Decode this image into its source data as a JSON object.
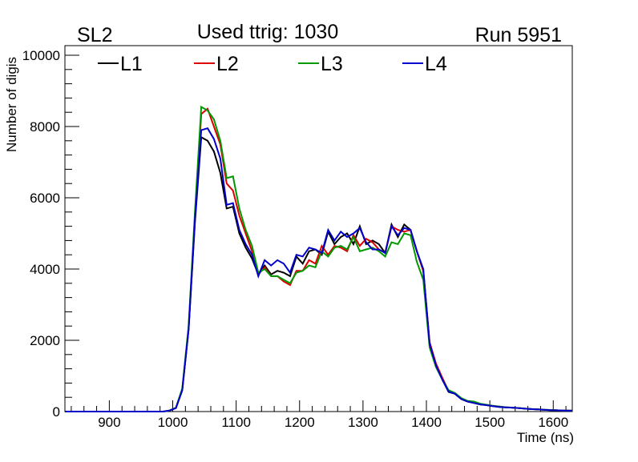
{
  "chart_data": {
    "type": "line",
    "title_left": "SL2",
    "title_center": "Used ttrig: 1030",
    "title_right": "Run 5951",
    "xlabel": "Time (ns)",
    "ylabel": "Number of digis",
    "xlim": [
      830,
      1630
    ],
    "ylim": [
      0,
      10270
    ],
    "x_ticks": [
      900,
      1000,
      1100,
      1200,
      1300,
      1400,
      1500,
      1600
    ],
    "y_ticks": [
      0,
      2000,
      4000,
      6000,
      8000,
      10000
    ],
    "x_start": 835,
    "x_step": 10,
    "legend_position": "top",
    "series": [
      {
        "name": "L1",
        "color": "#000000",
        "values": [
          0,
          0,
          0,
          0,
          0,
          0,
          0,
          0,
          0,
          0,
          0,
          0,
          0,
          0,
          0,
          0,
          30,
          100,
          600,
          2300,
          5300,
          7700,
          7600,
          7300,
          6700,
          5700,
          5750,
          5000,
          4600,
          4300,
          3850,
          4100,
          3850,
          3950,
          3900,
          3800,
          4350,
          4150,
          4500,
          4550,
          4400,
          5050,
          4700,
          4900,
          5000,
          4700,
          5200,
          4700,
          4800,
          4700,
          4450,
          5250,
          4900,
          5250,
          5100,
          4500,
          3950,
          1900,
          1300,
          900,
          550,
          500,
          350,
          280,
          240,
          200,
          180,
          150,
          130,
          120,
          110,
          100,
          80,
          70,
          60,
          50,
          40,
          35,
          30,
          25
        ]
      },
      {
        "name": "L2",
        "color": "#dd0000",
        "values": [
          0,
          0,
          0,
          0,
          0,
          0,
          0,
          0,
          0,
          0,
          0,
          0,
          0,
          0,
          0,
          0,
          30,
          100,
          620,
          2350,
          5400,
          8350,
          8500,
          8000,
          7500,
          6400,
          6200,
          5500,
          5000,
          4500,
          3850,
          4050,
          3800,
          3800,
          3650,
          3550,
          3950,
          3950,
          4250,
          4150,
          4650,
          4400,
          4650,
          4600,
          4500,
          4950,
          4650,
          4850,
          4750,
          4550,
          4450,
          5200,
          5100,
          5050,
          5100,
          4500,
          3950,
          1950,
          1350,
          950,
          580,
          520,
          360,
          290,
          250,
          210,
          180,
          160,
          140,
          120,
          110,
          100,
          85,
          70,
          60,
          50,
          45,
          35,
          30,
          25
        ]
      },
      {
        "name": "L3",
        "color": "#009900",
        "values": [
          0,
          0,
          0,
          0,
          0,
          0,
          0,
          0,
          0,
          0,
          0,
          0,
          0,
          0,
          0,
          0,
          30,
          110,
          650,
          2400,
          5600,
          8550,
          8450,
          8200,
          7600,
          6550,
          6600,
          5700,
          5100,
          4650,
          3900,
          4000,
          3800,
          3800,
          3700,
          3600,
          3900,
          3950,
          4100,
          4050,
          4500,
          4350,
          4600,
          4650,
          4550,
          4900,
          4500,
          4550,
          4600,
          4500,
          4350,
          4750,
          4700,
          5000,
          4950,
          4200,
          3700,
          1800,
          1250,
          900,
          600,
          520,
          380,
          300,
          280,
          220,
          190,
          160,
          140,
          120,
          110,
          100,
          85,
          70,
          60,
          50,
          45,
          35,
          30,
          25
        ]
      },
      {
        "name": "L4",
        "color": "#0000cc",
        "values": [
          0,
          0,
          0,
          0,
          0,
          0,
          0,
          0,
          0,
          0,
          0,
          0,
          0,
          0,
          0,
          0,
          30,
          100,
          600,
          2300,
          5400,
          7900,
          7950,
          7650,
          7100,
          5800,
          5850,
          5100,
          4700,
          4400,
          3800,
          4250,
          4100,
          4250,
          4150,
          3900,
          4400,
          4350,
          4600,
          4550,
          4450,
          5100,
          4800,
          5050,
          4900,
          5000,
          5150,
          4750,
          4550,
          4550,
          4450,
          5200,
          4950,
          5150,
          5100,
          4500,
          4000,
          1900,
          1300,
          900,
          560,
          500,
          350,
          280,
          240,
          200,
          180,
          150,
          130,
          120,
          110,
          100,
          80,
          70,
          60,
          50,
          40,
          35,
          30,
          25
        ]
      }
    ]
  }
}
